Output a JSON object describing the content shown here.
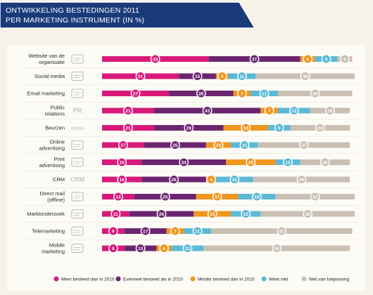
{
  "header": {
    "title_line1": "ONTWIKKELING BESTEDINGEN 2011",
    "title_line2": "PER MARKETING INSTRUMENT (IN %)"
  },
  "colors": {
    "banner": "#1a3b7a",
    "banner_border": "#ffffff",
    "panel_bg": "#fdfbf6",
    "page_bg": "#f6f2e8"
  },
  "chart_data": {
    "type": "bar",
    "orientation": "horizontal",
    "stacked": true,
    "title": "ONTWIKKELING BESTEDINGEN 2011 PER MARKETING INSTRUMENT (IN %)",
    "xlim": [
      0,
      100
    ],
    "legend_position": "bottom",
    "categories": [
      "Website van de organisatie",
      "Social media",
      "Email marketing",
      "Public relations",
      "Beurzen",
      "Online advertising",
      "Print advertising",
      "CRM",
      "Direct mail (offline)",
      "Marktonderzoek",
      "Telemarketing",
      "Mobile marketing"
    ],
    "icons": [
      "website-icon",
      "social-media-icon",
      "email-icon",
      "pr-icon",
      "expo-icon",
      "online-advertising-icon",
      "print-advertising-icon",
      "crm-icon",
      "direct-mail-icon",
      "market-research-icon",
      "telemarketing-icon",
      "mobile-marketing-icon"
    ],
    "icon_texts": [
      "",
      "",
      "",
      "PR",
      "EXPO",
      "",
      "",
      "CRM",
      "",
      "",
      "",
      ""
    ],
    "series": [
      {
        "name": "Meer besteed dan in 2010",
        "color": "#d9197a",
        "values": [
          43,
          31,
          27,
          21,
          21,
          17,
          16,
          16,
          13,
          11,
          9,
          9
        ]
      },
      {
        "name": "Evenveel besteed als in 2010",
        "color": "#6b2570",
        "values": [
          37,
          15,
          26,
          43,
          28,
          25,
          34,
          26,
          25,
          26,
          17,
          13
        ]
      },
      {
        "name": "Minder besteed dan in 2010",
        "color": "#f0961e",
        "values": [
          6,
          5,
          7,
          7,
          18,
          10,
          20,
          4,
          17,
          15,
          7,
          6
        ]
      },
      {
        "name": "Weet niet",
        "color": "#5bb9d6",
        "values": [
          9,
          11,
          11,
          13,
          9,
          11,
          10,
          15,
          15,
          12,
          11,
          13
        ]
      },
      {
        "name": "Niet van toepassing",
        "color": "#c9bfb4",
        "values": [
          6,
          40,
          30,
          16,
          24,
          37,
          20,
          39,
          32,
          38,
          57,
          59
        ]
      }
    ]
  }
}
